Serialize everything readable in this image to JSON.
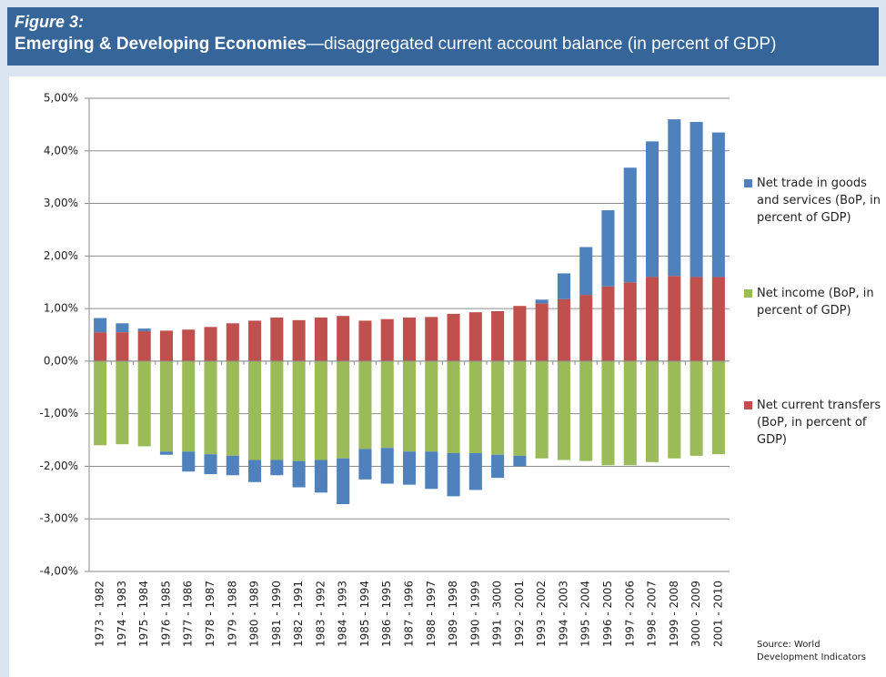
{
  "chart_data": {
    "type": "bar",
    "stacked": true,
    "figure_label": "Figure 3:",
    "title": "Emerging & Developing Economies",
    "subtitle": "—disaggregated current account balance (in percent of GDP)",
    "source": "Source: World Development Indicators",
    "categories": [
      "1973 - 1982",
      "1974 - 1983",
      "1975 - 1984",
      "1976 - 1985",
      "1977 - 1986",
      "1978 - 1987",
      "1979 - 1988",
      "1980 - 1989",
      "1981 - 1990",
      "1982 - 1991",
      "1983 - 1992",
      "1984 - 1993",
      "1985 - 1994",
      "1986 - 1995",
      "1987 - 1996",
      "1988 - 1997",
      "1989 - 1998",
      "1990 - 1999",
      "1991 - 3000",
      "1992 - 2001",
      "1993 - 2002",
      "1994 - 2003",
      "1995 - 2004",
      "1996 - 2005",
      "1997 - 2006",
      "1998 - 2007",
      "1999 - 2008",
      "3000 - 2009",
      "2001 - 2010"
    ],
    "series": [
      {
        "name": "Net trade in goods and services (BoP, in percent of GDP)",
        "color": "#4f81bd",
        "values": [
          0.27,
          0.17,
          0.05,
          -0.06,
          -0.38,
          -0.38,
          -0.37,
          -0.42,
          -0.29,
          -0.5,
          -0.62,
          -0.87,
          -0.58,
          -0.68,
          -0.63,
          -0.71,
          -0.82,
          -0.7,
          -0.44,
          -0.2,
          0.07,
          0.49,
          0.91,
          1.45,
          2.18,
          2.58,
          2.98,
          2.95,
          2.75
        ]
      },
      {
        "name": "Net income (BoP, in percent of GDP)",
        "color": "#9bbb59",
        "values": [
          -1.6,
          -1.58,
          -1.62,
          -1.72,
          -1.72,
          -1.77,
          -1.8,
          -1.88,
          -1.88,
          -1.9,
          -1.88,
          -1.85,
          -1.67,
          -1.65,
          -1.72,
          -1.72,
          -1.75,
          -1.75,
          -1.78,
          -1.8,
          -1.85,
          -1.88,
          -1.9,
          -1.98,
          -1.98,
          -1.92,
          -1.85,
          -1.8,
          -1.77
        ]
      },
      {
        "name": "Net current transfers (BoP, in percent of GDP)",
        "color": "#c0504d",
        "values": [
          0.55,
          0.55,
          0.57,
          0.58,
          0.6,
          0.65,
          0.72,
          0.77,
          0.83,
          0.78,
          0.83,
          0.86,
          0.77,
          0.8,
          0.83,
          0.84,
          0.9,
          0.93,
          0.95,
          1.05,
          1.1,
          1.18,
          1.26,
          1.42,
          1.5,
          1.6,
          1.62,
          1.6,
          1.6
        ]
      }
    ],
    "ylim": [
      -4,
      5
    ],
    "yticks": [
      {
        "value": -4,
        "label": "-4,00%"
      },
      {
        "value": -3,
        "label": "-3,00%"
      },
      {
        "value": -2,
        "label": "-2,00%"
      },
      {
        "value": -1,
        "label": "-1,00%"
      },
      {
        "value": 0,
        "label": "0,00%"
      },
      {
        "value": 1,
        "label": "1,00%"
      },
      {
        "value": 2,
        "label": "2,00%"
      },
      {
        "value": 3,
        "label": "3,00%"
      },
      {
        "value": 4,
        "label": "4,00%"
      },
      {
        "value": 5,
        "label": "5,00%"
      }
    ],
    "grid": true,
    "legend": "right"
  }
}
